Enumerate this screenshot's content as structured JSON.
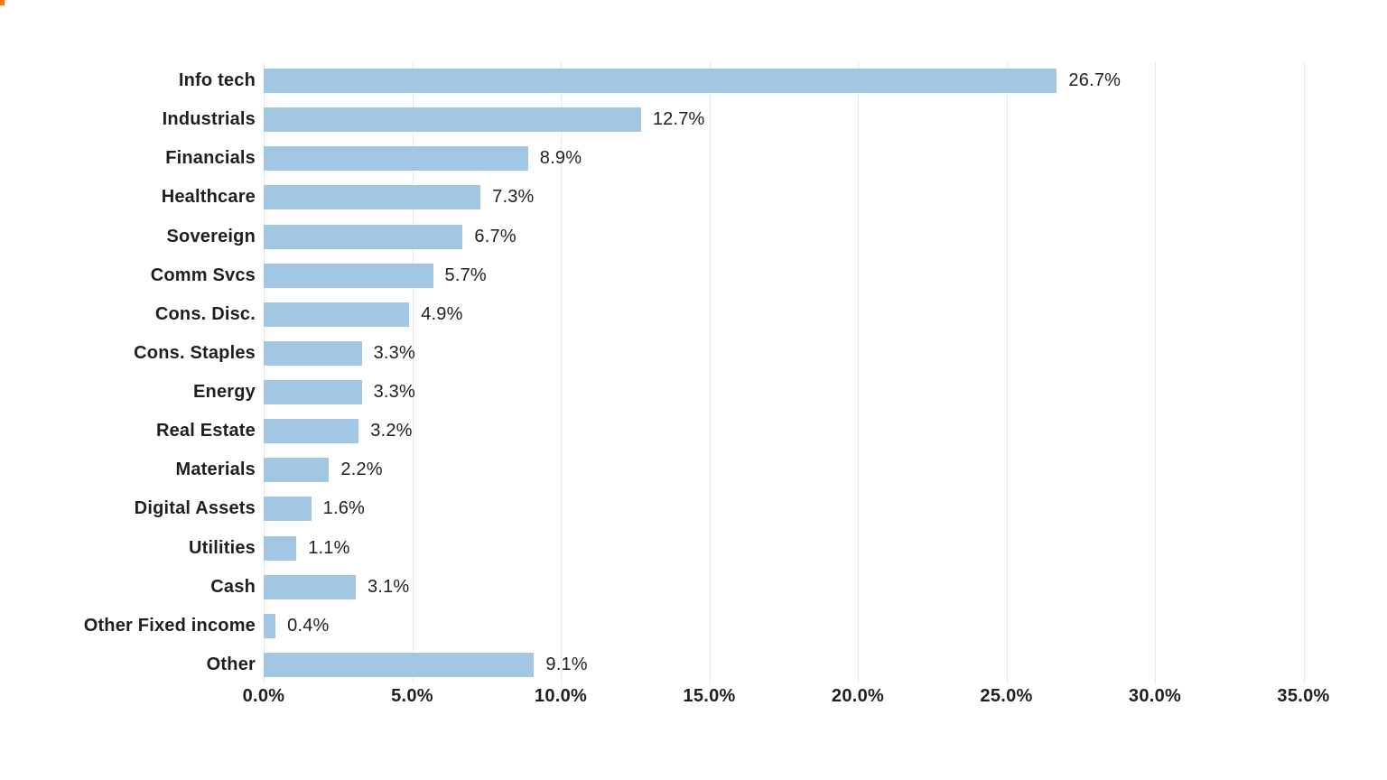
{
  "page": {
    "background_color": "#ffffff",
    "corner_mark_color": "#ff7a00",
    "text_color": "#1f1f1f"
  },
  "chart_data": {
    "type": "bar",
    "orientation": "horizontal",
    "title": "",
    "xlabel": "",
    "ylabel": "",
    "xlim": [
      0,
      35
    ],
    "grid": "vertical-gridlines-on",
    "legend": "none",
    "bar_color": "#a2c7e3",
    "gridline_color": "#e9e9e9",
    "categories": [
      "Info tech",
      "Industrials",
      "Financials",
      "Healthcare",
      "Sovereign",
      "Comm Svcs",
      "Cons. Disc.",
      "Cons. Staples",
      "Energy",
      "Real Estate",
      "Materials",
      "Digital Assets",
      "Utilities",
      "Cash",
      "Other Fixed income",
      "Other"
    ],
    "values": [
      26.7,
      12.7,
      8.9,
      7.3,
      6.7,
      5.7,
      4.9,
      3.3,
      3.3,
      3.2,
      2.2,
      1.6,
      1.1,
      3.1,
      0.4,
      9.1
    ],
    "value_labels": [
      "26.7%",
      "12.7%",
      "8.9%",
      "7.3%",
      "6.7%",
      "5.7%",
      "4.9%",
      "3.3%",
      "3.3%",
      "3.2%",
      "2.2%",
      "1.6%",
      "1.1%",
      "3.1%",
      "0.4%",
      "9.1%"
    ],
    "x_ticks": [
      0,
      5,
      10,
      15,
      20,
      25,
      30,
      35
    ],
    "x_tick_labels": [
      "0.0%",
      "5.0%",
      "10.0%",
      "15.0%",
      "20.0%",
      "25.0%",
      "30.0%",
      "35.0%"
    ]
  }
}
